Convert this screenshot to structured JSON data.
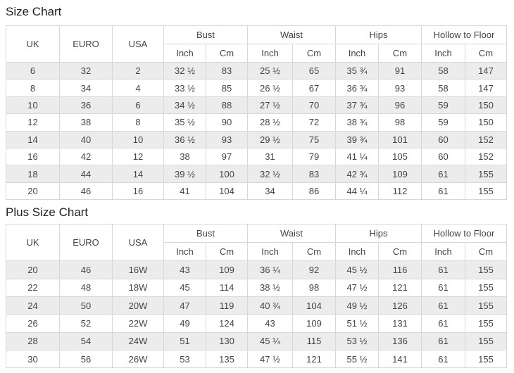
{
  "tables": [
    {
      "title": "Size Chart",
      "head": {
        "standalone": [
          "UK",
          "EURO",
          "USA"
        ],
        "groups": [
          "Bust",
          "Waist",
          "Hips",
          "Hollow to Floor"
        ],
        "units": [
          "Inch",
          "Cm"
        ]
      },
      "rows": [
        [
          "6",
          "32",
          "2",
          "32 ½",
          "83",
          "25 ½",
          "65",
          "35 ¾",
          "91",
          "58",
          "147"
        ],
        [
          "8",
          "34",
          "4",
          "33 ½",
          "85",
          "26 ½",
          "67",
          "36 ¾",
          "93",
          "58",
          "147"
        ],
        [
          "10",
          "36",
          "6",
          "34 ½",
          "88",
          "27 ½",
          "70",
          "37 ¾",
          "96",
          "59",
          "150"
        ],
        [
          "12",
          "38",
          "8",
          "35 ½",
          "90",
          "28 ½",
          "72",
          "38 ¾",
          "98",
          "59",
          "150"
        ],
        [
          "14",
          "40",
          "10",
          "36 ½",
          "93",
          "29 ½",
          "75",
          "39 ¾",
          "101",
          "60",
          "152"
        ],
        [
          "16",
          "42",
          "12",
          "38",
          "97",
          "31",
          "79",
          "41 ¼",
          "105",
          "60",
          "152"
        ],
        [
          "18",
          "44",
          "14",
          "39 ½",
          "100",
          "32 ½",
          "83",
          "42 ¾",
          "109",
          "61",
          "155"
        ],
        [
          "20",
          "46",
          "16",
          "41",
          "104",
          "34",
          "86",
          "44 ¼",
          "112",
          "61",
          "155"
        ]
      ]
    },
    {
      "title": "Plus Size Chart",
      "head": {
        "standalone": [
          "UK",
          "EURO",
          "USA"
        ],
        "groups": [
          "Bust",
          "Waist",
          "Hips",
          "Hollow to Floor"
        ],
        "units": [
          "Inch",
          "Cm"
        ]
      },
      "rows": [
        [
          "20",
          "46",
          "16W",
          "43",
          "109",
          "36 ¼",
          "92",
          "45 ½",
          "116",
          "61",
          "155"
        ],
        [
          "22",
          "48",
          "18W",
          "45",
          "114",
          "38 ½",
          "98",
          "47 ½",
          "121",
          "61",
          "155"
        ],
        [
          "24",
          "50",
          "20W",
          "47",
          "119",
          "40 ¾",
          "104",
          "49 ½",
          "126",
          "61",
          "155"
        ],
        [
          "26",
          "52",
          "22W",
          "49",
          "124",
          "43",
          "109",
          "51 ½",
          "131",
          "61",
          "155"
        ],
        [
          "28",
          "54",
          "24W",
          "51",
          "130",
          "45 ¼",
          "115",
          "53 ½",
          "136",
          "61",
          "155"
        ],
        [
          "30",
          "56",
          "26W",
          "53",
          "135",
          "47 ½",
          "121",
          "55 ½",
          "141",
          "61",
          "155"
        ]
      ]
    }
  ],
  "colors": {
    "background": "#ffffff",
    "stripe": "#ececec",
    "border": "#d8d8d8",
    "text": "#444444",
    "title": "#222222"
  }
}
